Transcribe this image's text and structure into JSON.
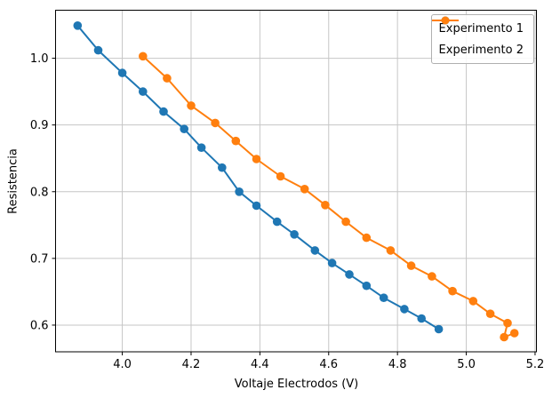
{
  "chart_data": {
    "type": "line",
    "title": "",
    "xlabel": "Voltaje Electrodos (V)",
    "ylabel": "Resistencia",
    "xlim": [
      3.806,
      5.204
    ],
    "ylim": [
      0.56,
      1.072
    ],
    "xticks": [
      4.0,
      4.2,
      4.4,
      4.6,
      4.8,
      5.0,
      5.2
    ],
    "yticks": [
      0.6,
      0.7,
      0.8,
      0.9,
      1.0
    ],
    "grid": true,
    "legend": {
      "position": "upper-right",
      "entries": [
        "Experimento 1",
        "Experimento 2"
      ]
    },
    "colors": {
      "series1": "#1f77b4",
      "series2": "#ff7f0e",
      "grid": "#c6c6c6",
      "spine": "#000000",
      "text": "#000000"
    },
    "series": [
      {
        "name": "Experimento 1",
        "color": "#1f77b4",
        "marker": "circle",
        "x": [
          3.87,
          3.93,
          4.0,
          4.06,
          4.12,
          4.18,
          4.23,
          4.29,
          4.34,
          4.39,
          4.45,
          4.5,
          4.56,
          4.61,
          4.66,
          4.71,
          4.76,
          4.82,
          4.87,
          4.92
        ],
        "y": [
          1.049,
          1.012,
          0.978,
          0.95,
          0.92,
          0.894,
          0.866,
          0.836,
          0.8,
          0.779,
          0.755,
          0.736,
          0.712,
          0.693,
          0.676,
          0.659,
          0.641,
          0.624,
          0.61,
          0.594
        ]
      },
      {
        "name": "Experimento 2",
        "color": "#ff7f0e",
        "marker": "circle",
        "x": [
          4.06,
          4.13,
          4.2,
          4.27,
          4.33,
          4.39,
          4.46,
          4.53,
          4.59,
          4.65,
          4.71,
          4.78,
          4.84,
          4.9,
          4.96,
          5.02,
          5.07,
          5.12,
          5.11,
          5.14
        ],
        "y": [
          1.003,
          0.97,
          0.929,
          0.903,
          0.876,
          0.849,
          0.823,
          0.804,
          0.78,
          0.755,
          0.731,
          0.712,
          0.689,
          0.673,
          0.651,
          0.636,
          0.617,
          0.603,
          0.582,
          0.588
        ]
      }
    ]
  }
}
